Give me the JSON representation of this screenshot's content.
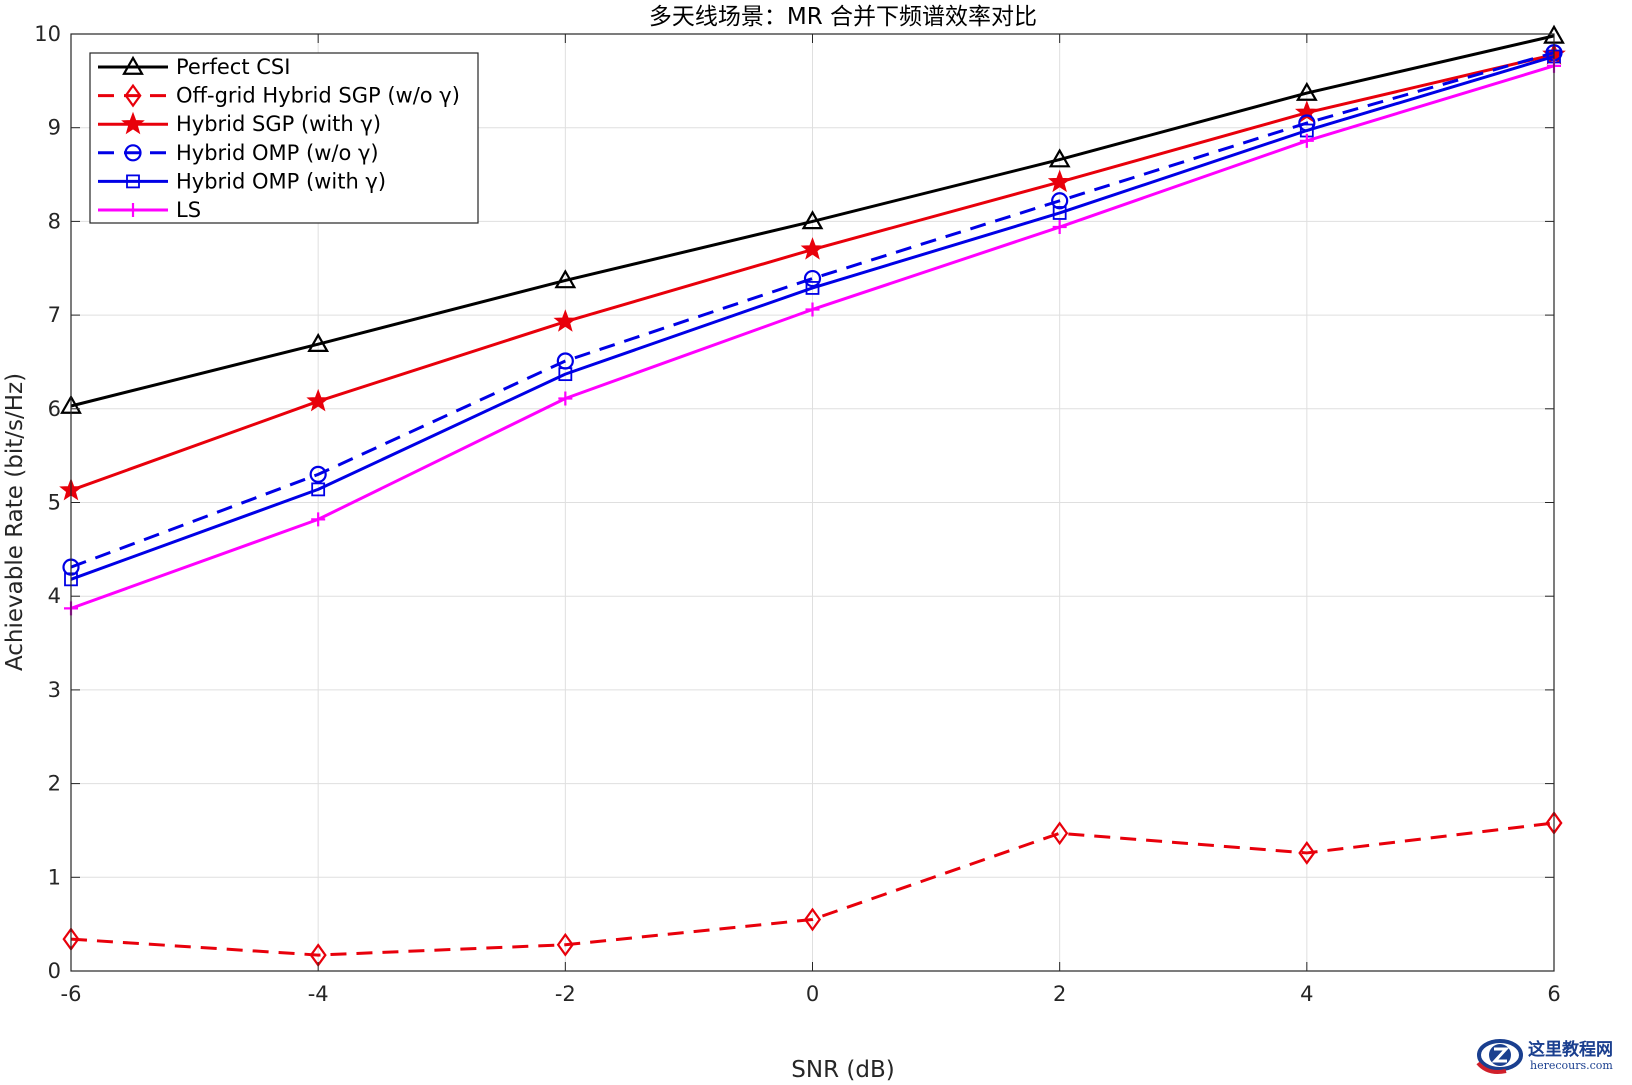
{
  "chart_data": {
    "type": "line",
    "title": "多天线场景：MR 合并下频谱效率对比",
    "xlabel": "SNR (dB)",
    "ylabel": "Achievable Rate (bit/s/Hz)",
    "xlim": [
      -6,
      6
    ],
    "ylim": [
      0,
      10
    ],
    "xticks": [
      -6,
      -4,
      -2,
      0,
      2,
      4,
      6
    ],
    "yticks": [
      0,
      1,
      2,
      3,
      4,
      5,
      6,
      7,
      8,
      9,
      10
    ],
    "grid": true,
    "legend_position": "top-left",
    "x": [
      -6,
      -4,
      -2,
      0,
      2,
      4,
      6
    ],
    "series": [
      {
        "name": "Perfect CSI",
        "color": "#000000",
        "dash": "solid",
        "marker": "triangle",
        "values": [
          6.03,
          6.69,
          7.37,
          8.0,
          8.66,
          9.37,
          9.98
        ]
      },
      {
        "name": "Off-grid  Hybrid  SGP  (w/o  γ)",
        "color": "#e8000b",
        "dash": "dashed",
        "marker": "diamond",
        "values": [
          0.34,
          0.17,
          0.28,
          0.55,
          1.47,
          1.26,
          1.58
        ]
      },
      {
        "name": "Hybrid  SGP  (with  γ)",
        "color": "#e8000b",
        "dash": "solid",
        "marker": "star",
        "values": [
          5.13,
          6.08,
          6.93,
          7.7,
          8.42,
          9.16,
          9.78
        ]
      },
      {
        "name": "Hybrid  OMP  (w/o  γ)",
        "color": "#0000e6",
        "dash": "dashed",
        "marker": "circle",
        "values": [
          4.31,
          5.3,
          6.51,
          7.39,
          8.22,
          9.05,
          9.8
        ]
      },
      {
        "name": "Hybrid  OMP  (with  γ)",
        "color": "#0000e6",
        "dash": "solid",
        "marker": "square",
        "values": [
          4.18,
          5.14,
          6.37,
          7.29,
          8.09,
          8.97,
          9.76
        ]
      },
      {
        "name": "LS",
        "color": "#ff00ff",
        "dash": "solid",
        "marker": "plus",
        "values": [
          3.87,
          4.82,
          6.11,
          7.06,
          7.94,
          8.86,
          9.66
        ]
      }
    ]
  },
  "watermark": {
    "text": "这里教程网",
    "url": "herecours.com",
    "logo_color": "#d0202a",
    "logo_ring_color": "#1a3f8f"
  }
}
